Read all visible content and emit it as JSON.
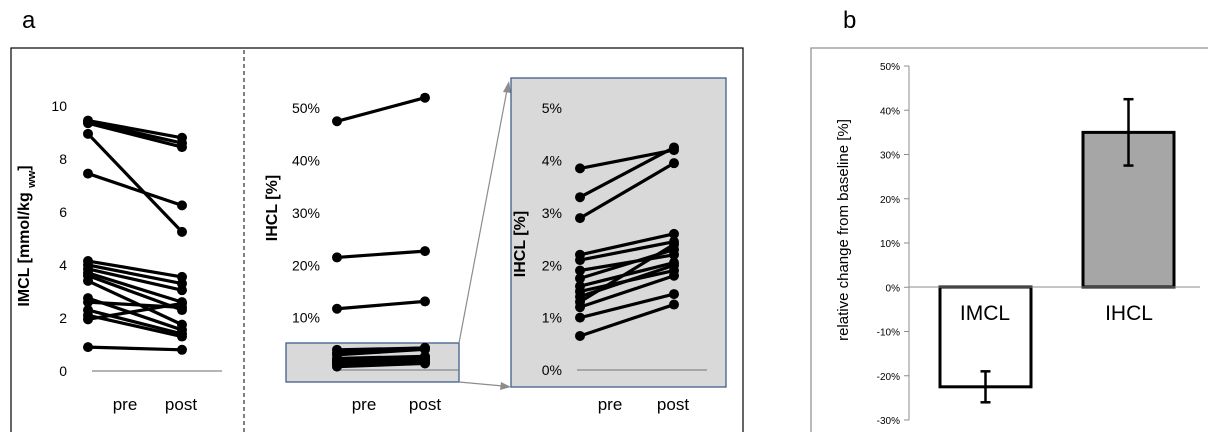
{
  "panel_labels": {
    "a": "a",
    "b": "b"
  },
  "chart_data": [
    {
      "type": "line",
      "panel": "a-left",
      "ylabel_main": "IMCL [mmol/kg",
      "ylabel_sub": "ww",
      "ylabel_close": "]",
      "ylim": [
        0,
        10
      ],
      "yticks": [
        "0",
        "2",
        "4",
        "6",
        "8",
        "10"
      ],
      "ytick_values": [
        0,
        2,
        4,
        6,
        8,
        10
      ],
      "categories": [
        "pre",
        "post"
      ],
      "pairs": [
        [
          9.45,
          8.8
        ],
        [
          9.4,
          8.6
        ],
        [
          9.35,
          8.45
        ],
        [
          8.95,
          5.25
        ],
        [
          7.45,
          6.25
        ],
        [
          4.15,
          3.55
        ],
        [
          4.0,
          3.3
        ],
        [
          3.85,
          3.05
        ],
        [
          3.7,
          2.6
        ],
        [
          3.6,
          2.3
        ],
        [
          3.4,
          1.75
        ],
        [
          2.75,
          1.55
        ],
        [
          2.6,
          2.4
        ],
        [
          2.3,
          1.4
        ],
        [
          2.1,
          1.3
        ],
        [
          1.95,
          2.55
        ],
        [
          0.9,
          0.8
        ]
      ]
    },
    {
      "type": "line",
      "panel": "a-middle",
      "ylabel": "IHCL [%]",
      "ylim": [
        0,
        55
      ],
      "yticks": [
        "0%",
        "10%",
        "20%",
        "30%",
        "40%",
        "50%"
      ],
      "ytick_values": [
        0,
        10,
        20,
        30,
        40,
        50
      ],
      "categories": [
        "pre",
        "post"
      ],
      "pairs": [
        [
          47.5,
          52.0
        ],
        [
          21.5,
          22.7
        ],
        [
          11.7,
          13.1
        ],
        [
          3.85,
          4.2
        ],
        [
          3.3,
          4.25
        ],
        [
          2.9,
          3.95
        ],
        [
          2.2,
          2.6
        ],
        [
          2.1,
          2.45
        ],
        [
          1.9,
          2.2
        ],
        [
          1.75,
          2.3
        ],
        [
          1.6,
          2.05
        ],
        [
          1.5,
          1.9
        ],
        [
          1.4,
          2.0
        ],
        [
          1.3,
          2.4
        ],
        [
          1.2,
          1.8
        ],
        [
          1.0,
          1.45
        ],
        [
          0.65,
          1.25
        ]
      ]
    },
    {
      "type": "line",
      "panel": "a-zoom",
      "ylabel": "IHCL [%]",
      "ylim": [
        0,
        5.5
      ],
      "yticks": [
        "0%",
        "1%",
        "2%",
        "3%",
        "4%",
        "5%"
      ],
      "ytick_values": [
        0,
        1,
        2,
        3,
        4,
        5
      ],
      "categories": [
        "pre",
        "post"
      ],
      "pairs": [
        [
          3.85,
          4.2
        ],
        [
          3.3,
          4.25
        ],
        [
          2.9,
          3.95
        ],
        [
          2.2,
          2.6
        ],
        [
          2.1,
          2.45
        ],
        [
          1.9,
          2.2
        ],
        [
          1.75,
          2.3
        ],
        [
          1.6,
          2.05
        ],
        [
          1.5,
          1.9
        ],
        [
          1.4,
          2.0
        ],
        [
          1.3,
          2.4
        ],
        [
          1.2,
          1.8
        ],
        [
          1.0,
          1.45
        ],
        [
          0.65,
          1.25
        ]
      ]
    },
    {
      "type": "bar",
      "panel": "b",
      "ylabel": "relative change from baseline [%]",
      "ylim": [
        -30,
        50
      ],
      "yticks": [
        "-30%",
        "-20%",
        "-10%",
        "0%",
        "10%",
        "20%",
        "30%",
        "40%",
        "50%"
      ],
      "ytick_values": [
        -30,
        -20,
        -10,
        0,
        10,
        20,
        30,
        40,
        50
      ],
      "categories": [
        "IMCL",
        "IHCL"
      ],
      "values": [
        -22.5,
        35.0
      ],
      "errors": [
        3.5,
        7.5
      ],
      "colors": [
        "#ffffff",
        "#a6a6a6"
      ]
    }
  ]
}
